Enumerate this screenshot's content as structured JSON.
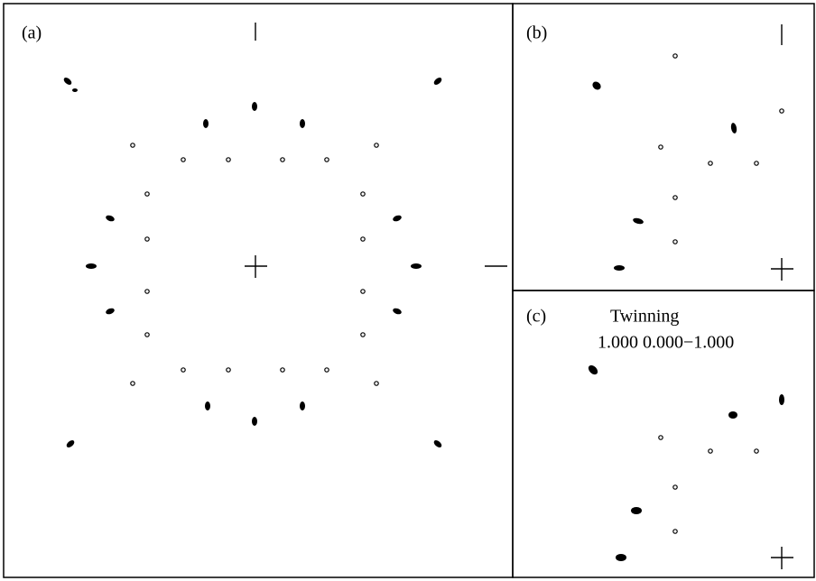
{
  "panels": [
    {
      "label": "(a)"
    },
    {
      "label": "(b)"
    },
    {
      "label": "(c)",
      "title": "Twinning",
      "subtitle": "1.000 0.000−1.000"
    }
  ]
}
